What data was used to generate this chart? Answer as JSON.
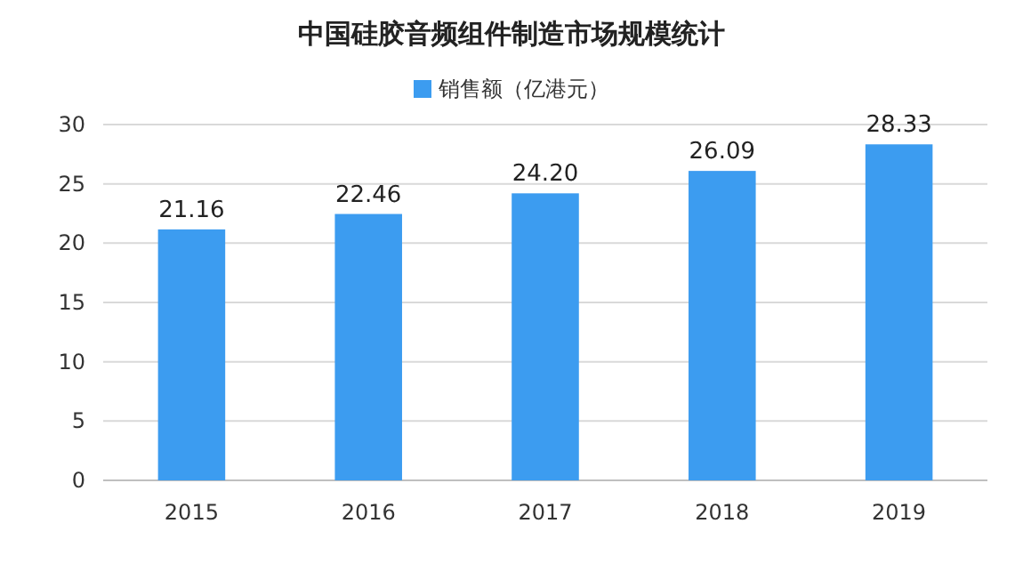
{
  "chart_data": {
    "type": "bar",
    "title": "中国硅胶音频组件制造市场规模统计",
    "categories": [
      "2015",
      "2016",
      "2017",
      "2018",
      "2019"
    ],
    "series": [
      {
        "name": "销售额（亿港元）",
        "color": "#3c9cf0",
        "values": [
          21.16,
          22.46,
          24.2,
          26.09,
          28.33
        ],
        "value_labels": [
          "21.16",
          "22.46",
          "24.20",
          "26.09",
          "28.33"
        ]
      }
    ],
    "ylim": [
      0,
      30
    ],
    "yticks": [
      0,
      5,
      10,
      15,
      20,
      25,
      30
    ],
    "grid": "y",
    "legend": "top"
  }
}
